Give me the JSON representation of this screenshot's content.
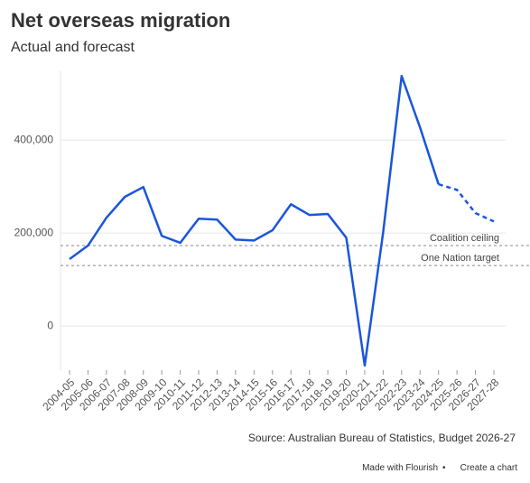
{
  "chart_data": {
    "type": "line",
    "title": "Net overseas migration",
    "subtitle": "Actual and forecast",
    "categories": [
      "2004-05",
      "2005-06",
      "2006-07",
      "2007-08",
      "2008-09",
      "2009-10",
      "2010-11",
      "2011-12",
      "2012-13",
      "2013-14",
      "2014-15",
      "2015-16",
      "2016-17",
      "2017-18",
      "2018-19",
      "2019-20",
      "2020-21",
      "2021-22",
      "2022-23",
      "2023-24",
      "2024-25",
      "2025-26",
      "2026-27",
      "2027-28"
    ],
    "values": [
      144000,
      173000,
      233000,
      278000,
      299000,
      194000,
      179000,
      231000,
      229000,
      186000,
      184000,
      206000,
      262000,
      239000,
      241000,
      190000,
      -85000,
      202000,
      538000,
      427000,
      305000,
      293000,
      243000,
      225000
    ],
    "forecast_from": 20,
    "color": "#1a56db",
    "ylim": [
      -95000,
      550000
    ],
    "yticks": [
      {
        "value": 0,
        "label": "0"
      },
      {
        "value": 200000,
        "label": "200,000"
      },
      {
        "value": 400000,
        "label": "400,000"
      }
    ],
    "grid": true,
    "reference_lines": [
      {
        "label": "Coalition ceiling",
        "value": 173000
      },
      {
        "label": "One Nation target",
        "value": 130000
      }
    ],
    "source": "Source: Australian Bureau of Statistics, Budget 2026-27",
    "footer": [
      "Made with Flourish",
      "Create a chart"
    ]
  }
}
